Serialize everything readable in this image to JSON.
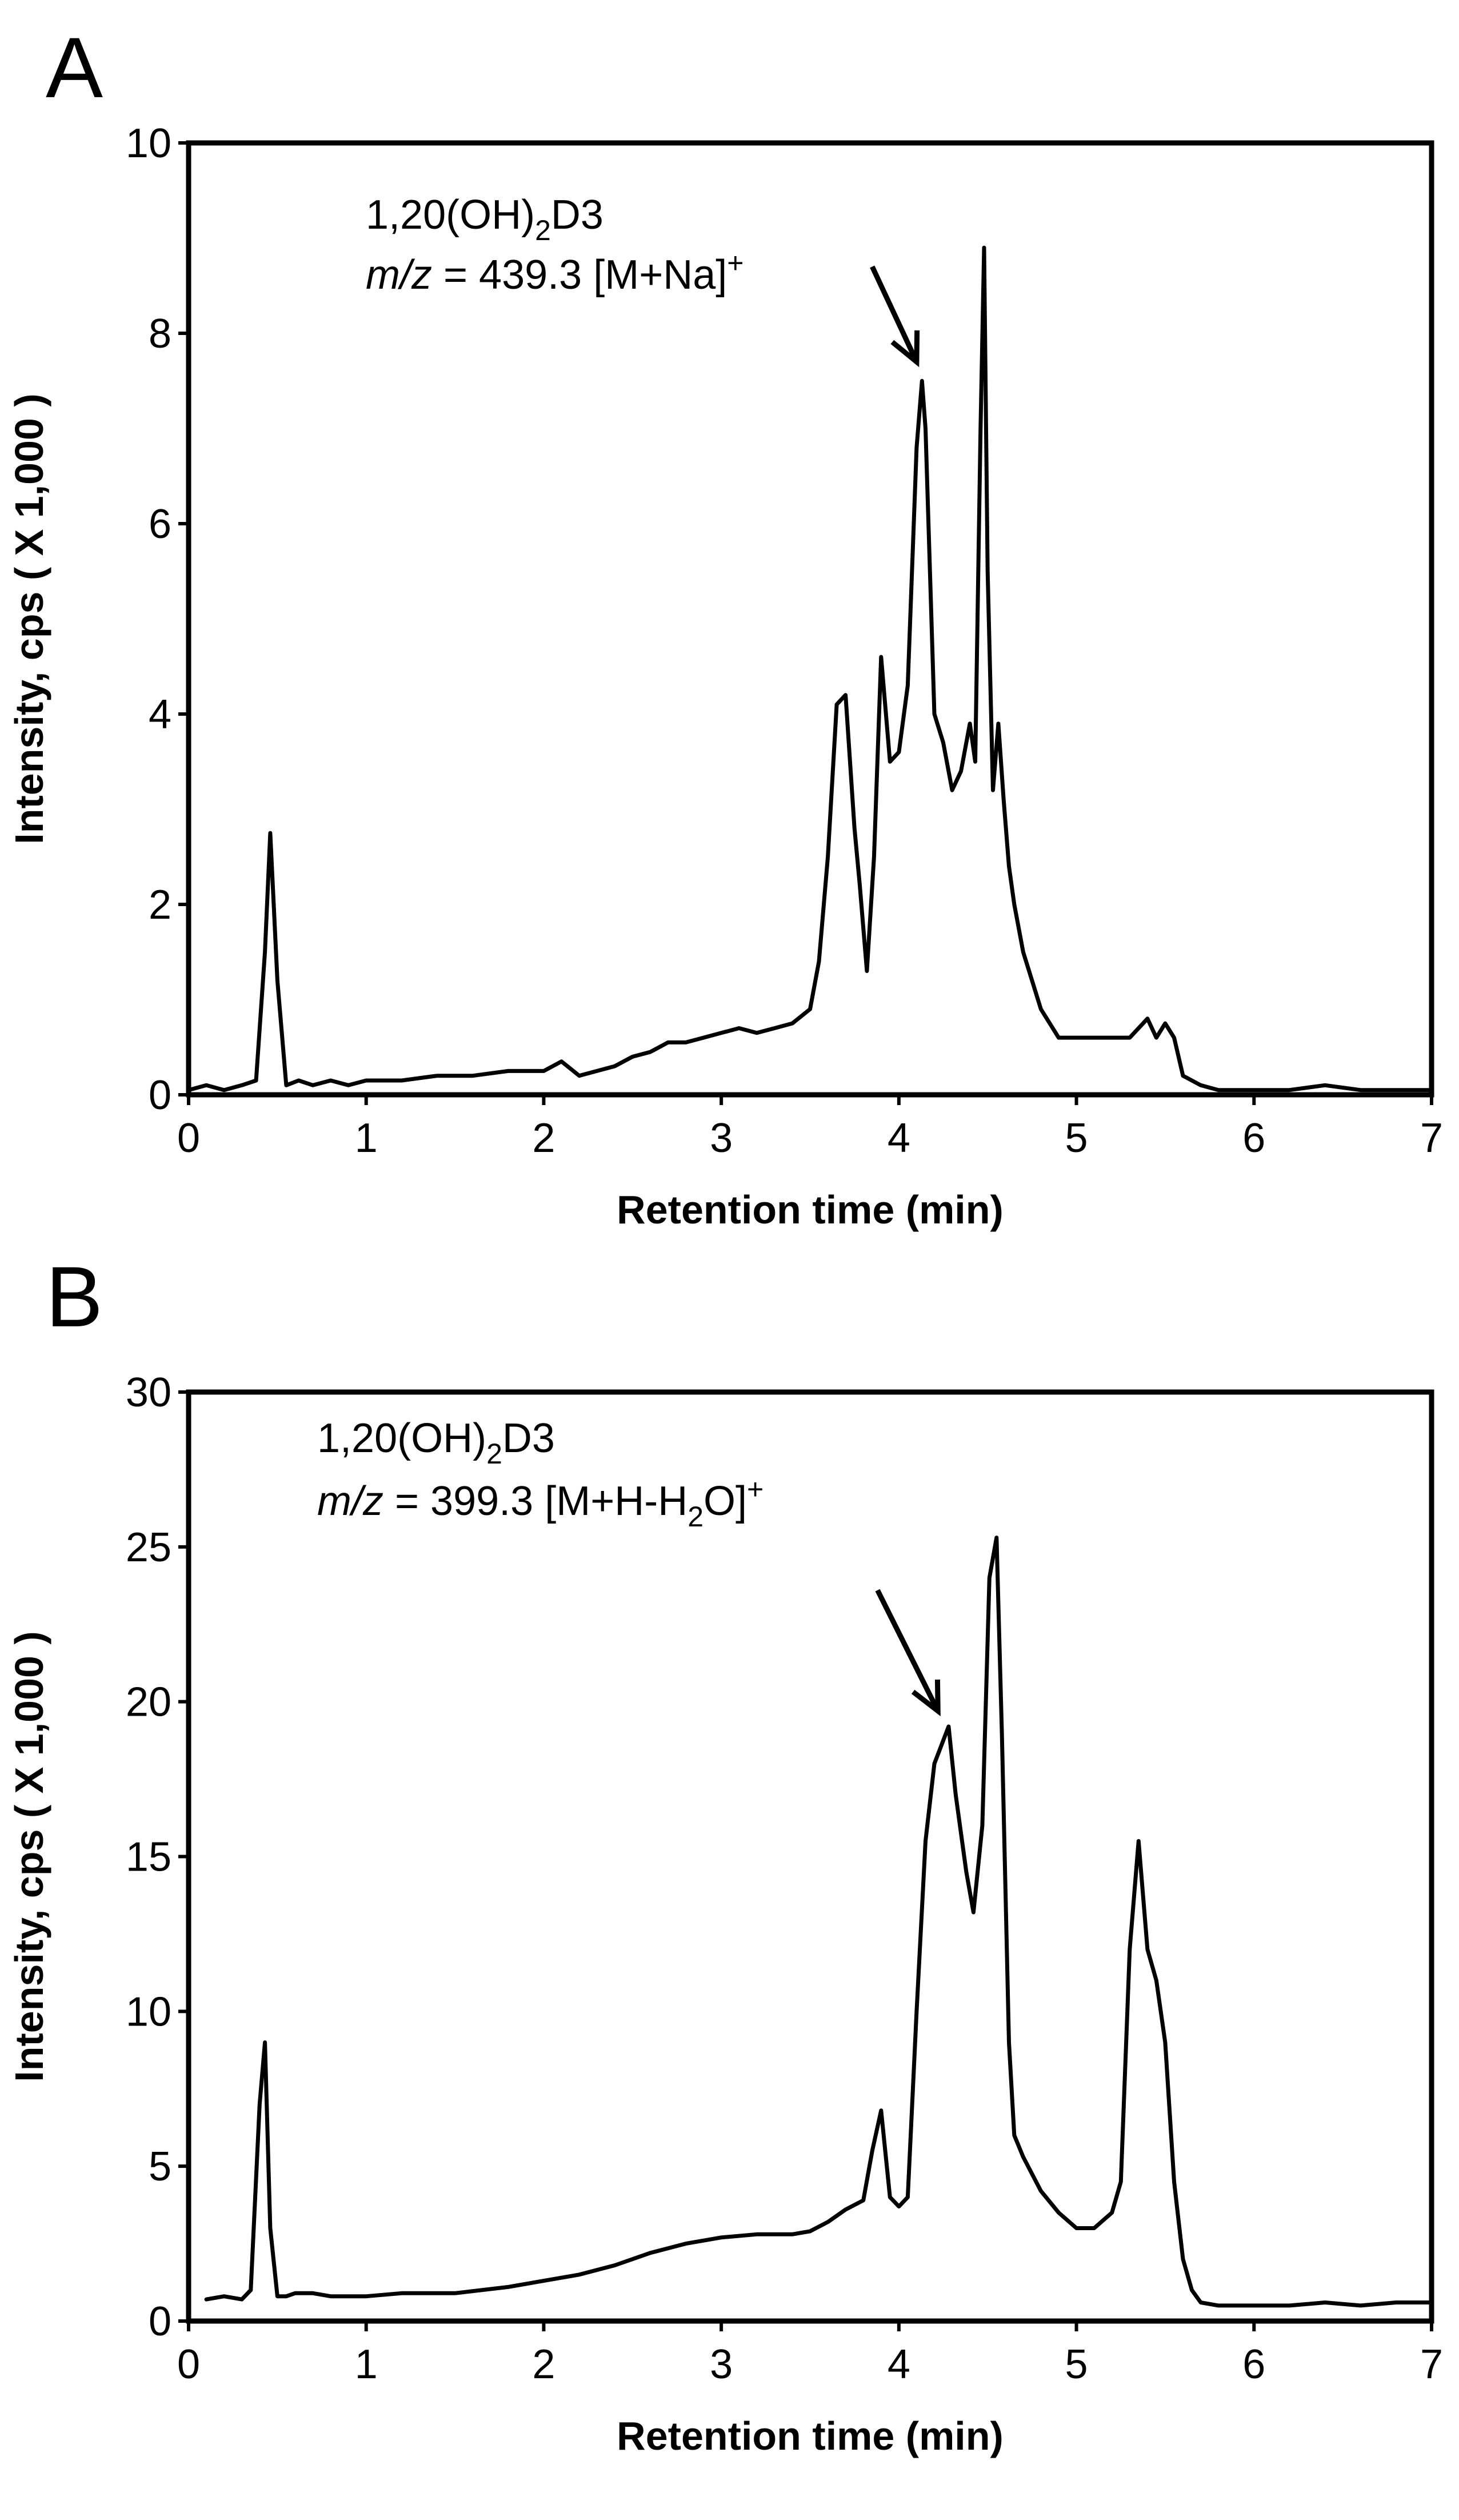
{
  "chart_data": [
    {
      "type": "line",
      "panel_label": "A",
      "title": "",
      "xlabel": "Retention time (min)",
      "ylabel": "Intensity, cps ( X 1,000 )",
      "xlim": [
        0,
        7
      ],
      "ylim": [
        0,
        10
      ],
      "xticks": [
        0,
        1,
        2,
        3,
        4,
        5,
        6,
        7
      ],
      "yticks": [
        0,
        2,
        4,
        6,
        8,
        10
      ],
      "annotation": {
        "line1_prefix": "1,20(OH)",
        "line1_sub": "2",
        "line1_suffix": "D3",
        "line2_mz": "m/z",
        "line2_value": " = 439.3 [M+Na]",
        "line2_sup": "+",
        "arrow_points_to_x": 4.1,
        "arrow_points_to_y": 7.7,
        "arrow_from_x": 3.85,
        "arrow_from_y": 8.7
      },
      "series": [
        {
          "name": "m/z 439.3",
          "x": [
            0.0,
            0.1,
            0.2,
            0.3,
            0.38,
            0.43,
            0.46,
            0.5,
            0.55,
            0.62,
            0.7,
            0.8,
            0.9,
            1.0,
            1.2,
            1.4,
            1.6,
            1.8,
            2.0,
            2.1,
            2.2,
            2.4,
            2.5,
            2.6,
            2.7,
            2.8,
            2.9,
            3.0,
            3.1,
            3.2,
            3.3,
            3.4,
            3.5,
            3.55,
            3.6,
            3.65,
            3.7,
            3.75,
            3.78,
            3.82,
            3.86,
            3.9,
            3.95,
            4.0,
            4.05,
            4.1,
            4.13,
            4.15,
            4.2,
            4.25,
            4.3,
            4.35,
            4.4,
            4.43,
            4.46,
            4.48,
            4.5,
            4.53,
            4.56,
            4.59,
            4.62,
            4.65,
            4.7,
            4.75,
            4.8,
            4.9,
            5.0,
            5.1,
            5.2,
            5.3,
            5.4,
            5.45,
            5.5,
            5.55,
            5.6,
            5.7,
            5.8,
            6.0,
            6.2,
            6.4,
            6.6,
            6.8,
            7.0
          ],
          "y": [
            0.05,
            0.1,
            0.05,
            0.1,
            0.15,
            1.5,
            2.75,
            1.2,
            0.1,
            0.15,
            0.1,
            0.15,
            0.1,
            0.15,
            0.15,
            0.2,
            0.2,
            0.25,
            0.25,
            0.35,
            0.2,
            0.3,
            0.4,
            0.45,
            0.55,
            0.55,
            0.6,
            0.65,
            0.7,
            0.65,
            0.7,
            0.75,
            0.9,
            1.4,
            2.5,
            4.1,
            4.2,
            2.8,
            2.2,
            1.3,
            2.5,
            4.6,
            3.5,
            3.6,
            4.3,
            6.8,
            7.5,
            7.0,
            4.0,
            3.7,
            3.2,
            3.4,
            3.9,
            3.5,
            7.0,
            8.9,
            5.5,
            3.2,
            3.9,
            3.1,
            2.4,
            2.0,
            1.5,
            1.2,
            0.9,
            0.6,
            0.6,
            0.6,
            0.6,
            0.6,
            0.8,
            0.6,
            0.75,
            0.6,
            0.2,
            0.1,
            0.05,
            0.05,
            0.05,
            0.1,
            0.05,
            0.05,
            0.05
          ]
        }
      ]
    },
    {
      "type": "line",
      "panel_label": "B",
      "title": "",
      "xlabel": "Retention time (min)",
      "ylabel": "Intensity, cps ( X 1,000 )",
      "xlim": [
        0,
        7
      ],
      "ylim": [
        0,
        30
      ],
      "xticks": [
        0,
        1,
        2,
        3,
        4,
        5,
        6,
        7
      ],
      "yticks": [
        0,
        5,
        10,
        15,
        20,
        25,
        30
      ],
      "annotation": {
        "line1_prefix": "1,20(OH)",
        "line1_sub": "2",
        "line1_suffix": "D3",
        "line2_mz": "m/z",
        "line2_value": " = 399.3 [M+H-H",
        "line2_sub": "2",
        "line2_after_sub": "O]",
        "line2_sup": "+",
        "arrow_points_to_x": 4.22,
        "arrow_points_to_y": 19.7,
        "arrow_from_x": 3.88,
        "arrow_from_y": 23.6
      },
      "series": [
        {
          "name": "m/z 399.3",
          "x": [
            0.1,
            0.2,
            0.3,
            0.35,
            0.4,
            0.43,
            0.46,
            0.5,
            0.55,
            0.6,
            0.7,
            0.8,
            1.0,
            1.2,
            1.5,
            1.8,
            2.0,
            2.2,
            2.4,
            2.6,
            2.8,
            3.0,
            3.2,
            3.4,
            3.5,
            3.6,
            3.7,
            3.8,
            3.85,
            3.9,
            3.95,
            4.0,
            4.05,
            4.1,
            4.15,
            4.2,
            4.28,
            4.32,
            4.38,
            4.42,
            4.47,
            4.51,
            4.55,
            4.58,
            4.62,
            4.65,
            4.7,
            4.8,
            4.9,
            5.0,
            5.1,
            5.2,
            5.25,
            5.3,
            5.35,
            5.4,
            5.45,
            5.5,
            5.55,
            5.6,
            5.65,
            5.7,
            5.8,
            6.0,
            6.2,
            6.4,
            6.6,
            6.8,
            7.0
          ],
          "y": [
            0.7,
            0.8,
            0.7,
            1.0,
            7.0,
            9.0,
            3.0,
            0.8,
            0.8,
            0.9,
            0.9,
            0.8,
            0.8,
            0.9,
            0.9,
            1.1,
            1.3,
            1.5,
            1.8,
            2.2,
            2.5,
            2.7,
            2.8,
            2.8,
            2.9,
            3.2,
            3.6,
            3.9,
            5.5,
            6.8,
            4.0,
            3.7,
            4.0,
            10.0,
            15.5,
            18.0,
            19.2,
            17.0,
            14.5,
            13.2,
            16.0,
            24.0,
            25.3,
            19.0,
            9.0,
            6.0,
            5.3,
            4.2,
            3.5,
            3.0,
            3.0,
            3.5,
            4.5,
            12.0,
            15.5,
            12.0,
            11.0,
            9.0,
            4.5,
            2.0,
            1.0,
            0.6,
            0.5,
            0.5,
            0.5,
            0.6,
            0.5,
            0.6,
            0.6
          ]
        }
      ]
    }
  ]
}
